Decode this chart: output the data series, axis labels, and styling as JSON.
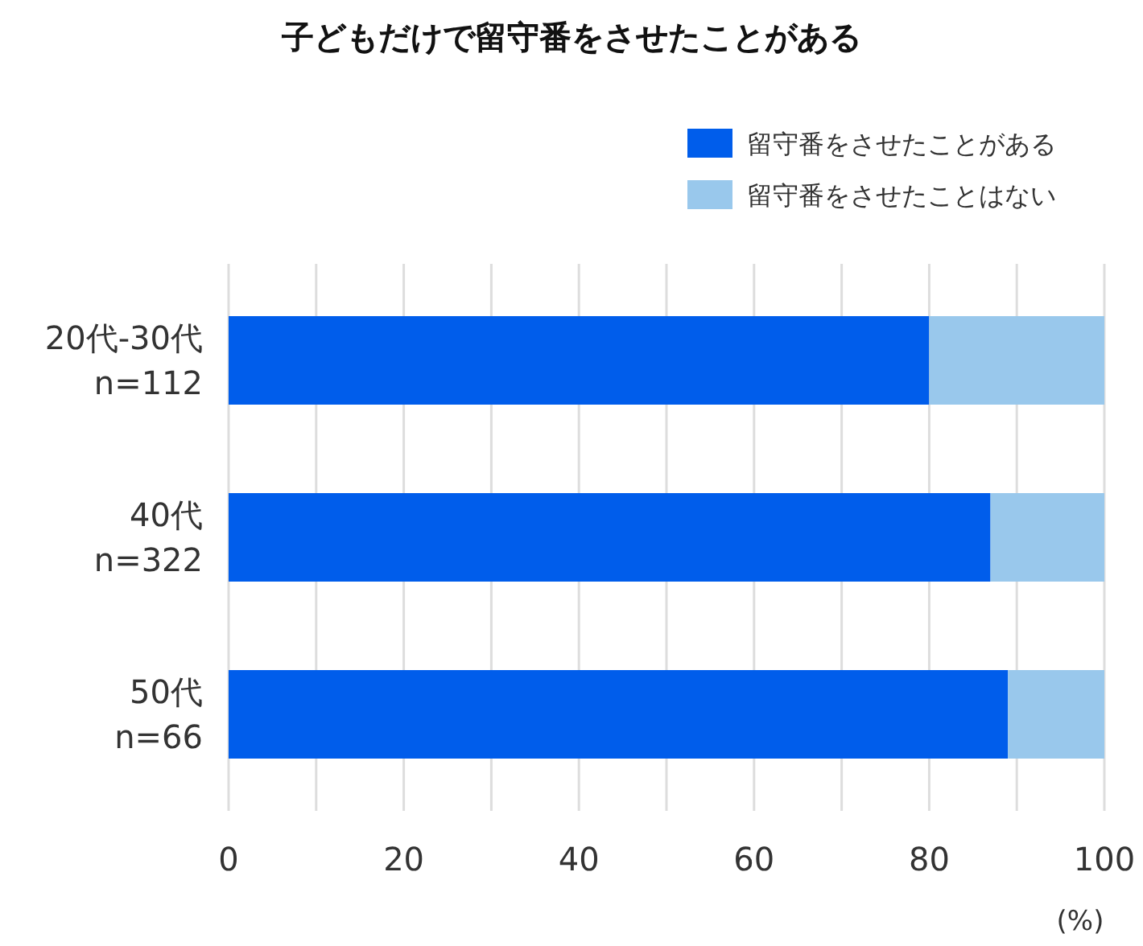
{
  "chart_data": {
    "type": "bar",
    "orientation": "horizontal",
    "stacked": true,
    "title": "子どもだけで留守番をさせたことがある",
    "xlabel": "(%)",
    "categories": [
      "20代-30代\nn=112",
      "40代\nn=322",
      "50代\nn=66"
    ],
    "series": [
      {
        "name": "留守番をさせたことがある",
        "color": "#005deb",
        "values": [
          80,
          87,
          89
        ]
      },
      {
        "name": "留守番をさせたことはない",
        "color": "#99c8ec",
        "values": [
          20,
          13,
          11
        ]
      }
    ],
    "xlim": [
      0,
      100
    ],
    "xticks": [
      0,
      {
        "value": 10,
        "label": null
      },
      20,
      {
        "value": 30,
        "label": null
      },
      40,
      {
        "value": 50,
        "label": null
      },
      60,
      {
        "value": 70,
        "label": null
      },
      80,
      {
        "value": 90,
        "label": null
      },
      100
    ],
    "grid": "x",
    "legend": "top right"
  }
}
